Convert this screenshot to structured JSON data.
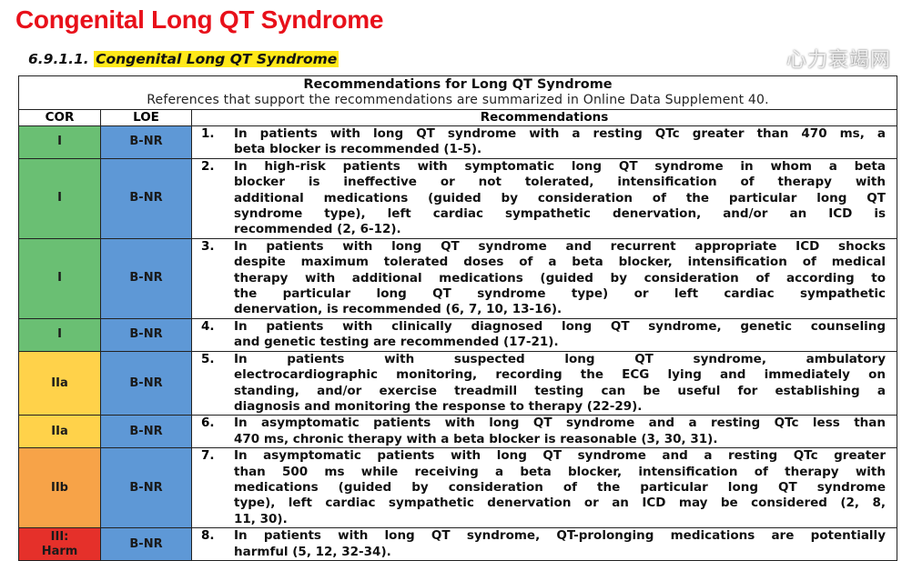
{
  "title": "Congenital Long QT Syndrome",
  "subtitle": {
    "number": "6.9.1.1.",
    "text": "Congenital Long QT Syndrome"
  },
  "table": {
    "caption": "Recommendations for Long QT Syndrome",
    "caption_note": "References that support the recommendations are summarized in Online Data Supplement 40.",
    "headers": [
      "COR",
      "LOE",
      "Recommendations"
    ],
    "colors": {
      "I": "#6abf73",
      "IIa": "#ffd24a",
      "IIb": "#f7a348",
      "III: Harm": "#e5302a",
      "LOE": "#5e98d6"
    },
    "rows": [
      {
        "cor": "I",
        "loe": "B-NR",
        "num": "1.",
        "lines": [
          "In patients with long QT syndrome with a resting QTc greater than 470 ms, a",
          "beta blocker is recommended (1-5)."
        ]
      },
      {
        "cor": "I",
        "loe": "B-NR",
        "num": "2.",
        "lines": [
          "In high-risk patients with symptomatic long QT syndrome in whom a beta",
          "blocker is ineffective or not tolerated, intensification of therapy with",
          "additional medications (guided by consideration of the particular long QT",
          "syndrome type), left cardiac sympathetic denervation, and/or an ICD is",
          "recommended (2, 6-12)."
        ]
      },
      {
        "cor": "I",
        "loe": "B-NR",
        "num": "3.",
        "lines": [
          "In patients with long QT syndrome and recurrent appropriate ICD shocks",
          "despite maximum tolerated doses of a beta blocker, intensification of medical",
          "therapy with additional medications (guided by consideration of according to",
          "the particular long QT syndrome type) or left cardiac sympathetic",
          "denervation, is recommended (6, 7, 10, 13-16)."
        ]
      },
      {
        "cor": "I",
        "loe": "B-NR",
        "num": "4.",
        "lines": [
          "In patients with clinically diagnosed long QT syndrome, genetic counseling",
          "and genetic testing are recommended (17-21)."
        ]
      },
      {
        "cor": "IIa",
        "loe": "B-NR",
        "num": "5.",
        "lines": [
          "In patients with suspected long QT syndrome, ambulatory",
          "electrocardiographic monitoring, recording the ECG lying and immediately on",
          "standing, and/or exercise treadmill testing can be useful for establishing a",
          "diagnosis and monitoring the response to therapy (22-29)."
        ]
      },
      {
        "cor": "IIa",
        "loe": "B-NR",
        "num": "6.",
        "lines": [
          "In asymptomatic patients with long QT syndrome and a resting QTc less than",
          "470 ms, chronic therapy with a beta blocker is reasonable (3, 30, 31)."
        ]
      },
      {
        "cor": "IIb",
        "loe": "B-NR",
        "num": "7.",
        "lines": [
          "In asymptomatic patients with long QT syndrome and a resting QTc greater",
          "than 500 ms while receiving a beta blocker, intensification of therapy with",
          "medications (guided by consideration of the particular long QT syndrome",
          "type), left cardiac sympathetic denervation or an ICD may be considered (2, 8,",
          "11, 30)."
        ]
      },
      {
        "cor": "III: Harm",
        "loe": "B-NR",
        "num": "8.",
        "lines": [
          "In patients with long QT syndrome, QT-prolonging medications are potentially",
          "harmful (5, 12, 32-34)."
        ]
      }
    ]
  },
  "watermark": "心力衰竭网"
}
